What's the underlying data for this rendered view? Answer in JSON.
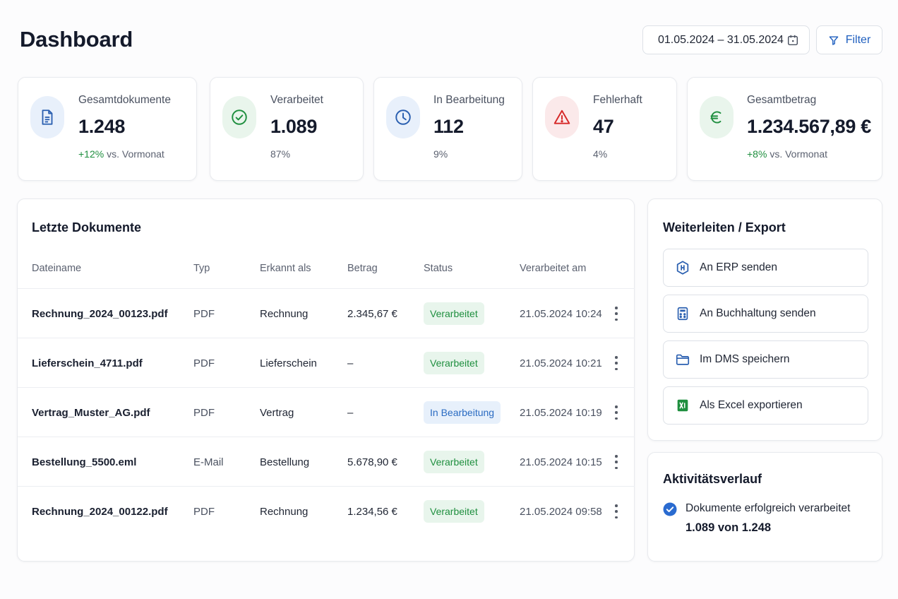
{
  "header": {
    "title": "Dashboard",
    "date_range": "01.05.2024 – 31.05.2024",
    "filter_label": "Filter"
  },
  "kpis": [
    {
      "label": "Gesamtdokumente",
      "value": "1.248",
      "delta": "+12%",
      "sub": "vs. Vormonat",
      "icon": "document-icon"
    },
    {
      "label": "Verarbeitet",
      "value": "1.089",
      "delta": "87%",
      "sub": "",
      "icon": "check-circle-icon"
    },
    {
      "label": "In Bearbeitung",
      "value": "112",
      "delta": "9%",
      "sub": "",
      "icon": "clock-icon"
    },
    {
      "label": "Fehlerhaft",
      "value": "47",
      "delta": "4%",
      "sub": "",
      "icon": "warning-icon"
    },
    {
      "label": "Gesamtbetrag",
      "value": "1.234.567,89 €",
      "delta": "+8%",
      "sub": "vs. Vormonat",
      "icon": "euro-icon"
    }
  ],
  "documents": {
    "title": "Letzte Dokumente",
    "columns": [
      "Dateiname",
      "Typ",
      "Erkannt als",
      "Betrag",
      "Status",
      "Verarbeitet am"
    ],
    "rows": [
      {
        "name": "Rechnung_2024_00123.pdf",
        "type": "PDF",
        "recognized": "Rechnung",
        "amount": "2.345,67 €",
        "status": "Verarbeitet",
        "status_kind": "done",
        "date": "21.05.2024 10:24"
      },
      {
        "name": "Lieferschein_4711.pdf",
        "type": "PDF",
        "recognized": "Lieferschein",
        "amount": "–",
        "status": "Verarbeitet",
        "status_kind": "done",
        "date": "21.05.2024 10:21"
      },
      {
        "name": "Vertrag_Muster_AG.pdf",
        "type": "PDF",
        "recognized": "Vertrag",
        "amount": "–",
        "status": "In Bearbeitung",
        "status_kind": "progress",
        "date": "21.05.2024 10:19"
      },
      {
        "name": "Bestellung_5500.eml",
        "type": "E-Mail",
        "recognized": "Bestellung",
        "amount": "5.678,90 €",
        "status": "Verarbeitet",
        "status_kind": "done",
        "date": "21.05.2024 10:15"
      },
      {
        "name": "Rechnung_2024_00122.pdf",
        "type": "PDF",
        "recognized": "Rechnung",
        "amount": "1.234,56 €",
        "status": "Verarbeitet",
        "status_kind": "done",
        "date": "21.05.2024 09:58"
      }
    ]
  },
  "export": {
    "title": "Weiterleiten / Export",
    "actions": [
      {
        "label": "An ERP senden",
        "icon": "hexagon-icon"
      },
      {
        "label": "An Buchhaltung senden",
        "icon": "calculator-icon"
      },
      {
        "label": "Im DMS speichern",
        "icon": "folder-icon"
      },
      {
        "label": "Als Excel exportieren",
        "icon": "excel-icon"
      }
    ]
  },
  "activity": {
    "title": "Aktivitätsverlauf",
    "text": "Dokumente erfolgreich verarbeitet",
    "count": "1.089 von 1.248"
  },
  "colors": {
    "accent": "#1f5fbf",
    "success": "#1f8f3f",
    "error": "#d62828",
    "progress": "#2a6bc2"
  }
}
